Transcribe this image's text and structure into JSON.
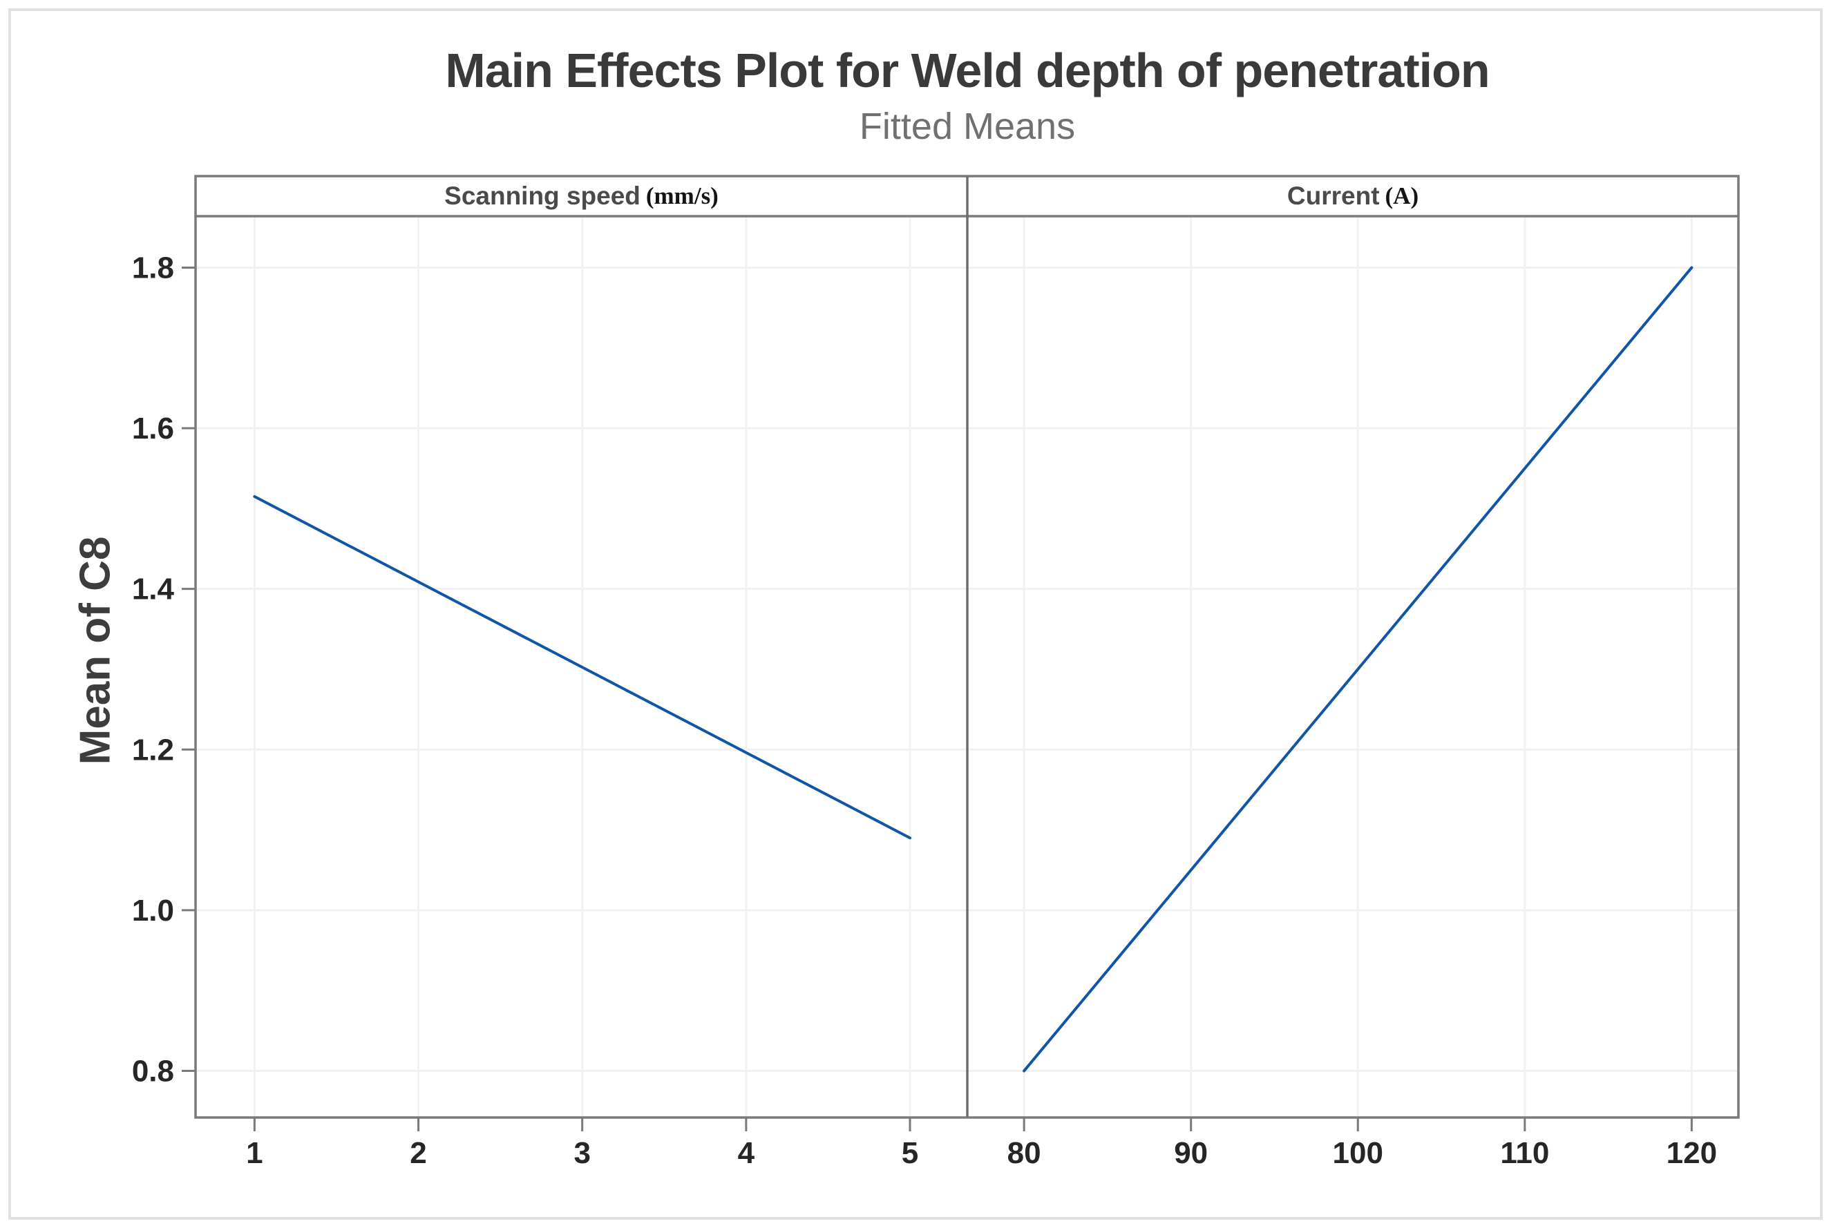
{
  "figure": {
    "title": "Main Effects Plot for Weld depth of penetration",
    "subtitle": "Fitted Means",
    "ylabel": "Mean of C8"
  },
  "chart_data": {
    "type": "line",
    "title": "Main Effects Plot for Weld depth of penetration",
    "subtitle": "Fitted Means",
    "ylabel": "Mean of C8",
    "ylim": [
      0.742,
      1.864
    ],
    "yticks": [
      0.8,
      1.0,
      1.2,
      1.4,
      1.6,
      1.8
    ],
    "grid": true,
    "legend": "none",
    "panels": [
      {
        "label": "Scanning speed",
        "unit": "(mm/s)",
        "xlim": [
          0.64,
          5.35
        ],
        "xticks": [
          1,
          2,
          3,
          4,
          5
        ],
        "series": [
          {
            "name": "fitted-mean",
            "x": [
              1,
              5
            ],
            "y": [
              1.515,
              1.09
            ]
          }
        ]
      },
      {
        "label": "Current",
        "unit": "(A)",
        "xlim": [
          76.6,
          122.8
        ],
        "xticks": [
          80,
          90,
          100,
          110,
          120
        ],
        "series": [
          {
            "name": "fitted-mean",
            "x": [
              80,
              120
            ],
            "y": [
              0.8,
              1.8
            ]
          }
        ]
      }
    ]
  },
  "colors": {
    "line": "#1156A6",
    "panel_border": "#7A7A7A",
    "panel_divider": "#6E6E6E",
    "gridline": "#F1F1F1",
    "tick": "#7A7A7A",
    "tick_label": "#262626",
    "title": "#3A3A3A",
    "subtitle": "#707070",
    "axis_label": "#3D3D3D",
    "header_label": "#4A4A4A",
    "unit_label": "#141414",
    "frame": "#E0E0E0",
    "background": "#FFFFFF"
  }
}
